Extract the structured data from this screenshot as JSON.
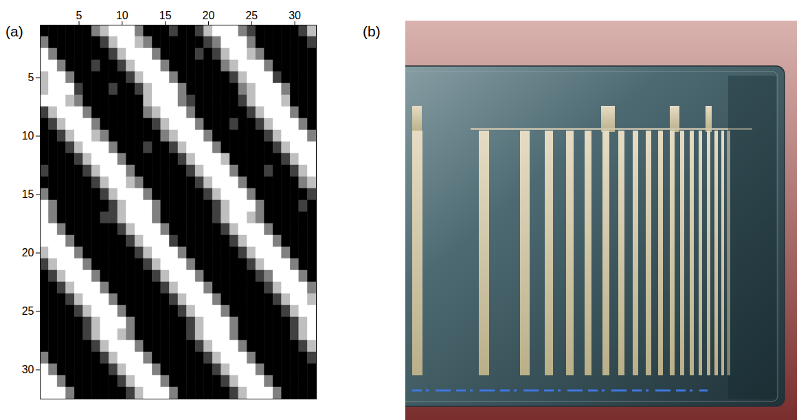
{
  "chart_data": {
    "type": "heatmap",
    "panel_label": "(a)",
    "x": [
      1,
      2,
      3,
      4,
      5,
      6,
      7,
      8,
      9,
      10,
      11,
      12,
      13,
      14,
      15,
      16,
      17,
      18,
      19,
      20,
      21,
      22,
      23,
      24,
      25,
      26,
      27,
      28,
      29,
      30,
      31,
      32
    ],
    "y": [
      1,
      2,
      3,
      4,
      5,
      6,
      7,
      8,
      9,
      10,
      11,
      12,
      13,
      14,
      15,
      16,
      17,
      18,
      19,
      20,
      21,
      22,
      23,
      24,
      25,
      26,
      27,
      28,
      29,
      30,
      31,
      32
    ],
    "xlim": [
      0.5,
      32.5
    ],
    "ylim": [
      0.5,
      32.5
    ],
    "xticks": [
      5,
      10,
      15,
      20,
      25,
      30
    ],
    "yticks": [
      5,
      10,
      15,
      20,
      25,
      30
    ],
    "color_range": [
      0,
      4
    ],
    "values": [
      [
        4,
        4,
        4,
        4,
        4,
        4,
        2,
        1,
        0,
        0,
        0,
        2,
        4,
        4,
        4,
        3,
        4,
        4,
        3,
        1,
        0,
        0,
        0,
        2,
        3,
        4,
        4,
        4,
        4,
        4,
        3,
        1
      ],
      [
        2,
        4,
        4,
        4,
        4,
        4,
        4,
        3,
        1,
        0,
        0,
        1,
        2,
        4,
        4,
        4,
        4,
        4,
        4,
        3,
        2,
        0,
        0,
        0,
        2,
        4,
        4,
        4,
        4,
        4,
        4,
        3
      ],
      [
        0,
        2,
        4,
        4,
        4,
        4,
        4,
        4,
        3,
        1,
        0,
        0,
        0,
        2,
        4,
        4,
        4,
        4,
        3,
        4,
        3,
        1,
        0,
        0,
        1,
        2,
        4,
        4,
        4,
        4,
        4,
        4
      ],
      [
        0,
        0,
        2,
        4,
        4,
        4,
        3,
        4,
        4,
        3,
        1,
        0,
        0,
        0,
        2,
        4,
        4,
        4,
        4,
        4,
        4,
        2,
        1,
        0,
        0,
        0,
        2,
        4,
        4,
        4,
        4,
        4
      ],
      [
        1,
        0,
        0,
        2,
        4,
        4,
        4,
        4,
        4,
        4,
        3,
        1,
        0,
        0,
        0,
        2,
        4,
        4,
        4,
        4,
        4,
        4,
        3,
        1,
        0,
        0,
        0,
        3,
        4,
        4,
        4,
        4
      ],
      [
        1,
        0,
        0,
        0,
        3,
        4,
        4,
        4,
        3,
        4,
        4,
        3,
        1,
        0,
        0,
        0,
        2,
        4,
        4,
        4,
        4,
        4,
        4,
        2,
        1,
        0,
        0,
        0,
        2,
        4,
        4,
        4
      ],
      [
        0,
        0,
        0,
        1,
        2,
        4,
        4,
        4,
        4,
        4,
        4,
        4,
        1,
        0,
        0,
        0,
        2,
        3,
        4,
        4,
        4,
        4,
        4,
        3,
        1,
        0,
        0,
        0,
        1,
        4,
        4,
        4
      ],
      [
        3,
        1,
        0,
        0,
        0,
        2,
        4,
        4,
        4,
        4,
        4,
        4,
        2,
        1,
        0,
        0,
        0,
        2,
        4,
        4,
        4,
        4,
        4,
        4,
        3,
        1,
        0,
        0,
        0,
        2,
        4,
        4
      ],
      [
        4,
        3,
        1,
        0,
        0,
        0,
        2,
        4,
        4,
        4,
        4,
        4,
        4,
        3,
        1,
        0,
        0,
        0,
        2,
        4,
        4,
        4,
        3,
        4,
        4,
        3,
        1,
        0,
        0,
        0,
        2,
        4
      ],
      [
        4,
        4,
        3,
        1,
        0,
        0,
        1,
        2,
        4,
        4,
        4,
        4,
        4,
        4,
        2,
        1,
        0,
        0,
        0,
        2,
        4,
        4,
        4,
        4,
        4,
        4,
        3,
        1,
        0,
        0,
        0,
        2
      ],
      [
        4,
        4,
        4,
        3,
        1,
        0,
        0,
        0,
        2,
        4,
        4,
        4,
        3,
        4,
        4,
        3,
        1,
        0,
        0,
        0,
        2,
        4,
        4,
        4,
        4,
        4,
        4,
        3,
        1,
        0,
        0,
        0
      ],
      [
        4,
        4,
        4,
        4,
        3,
        1,
        0,
        0,
        0,
        2,
        4,
        4,
        4,
        4,
        4,
        4,
        3,
        1,
        0,
        0,
        0,
        1,
        4,
        4,
        4,
        4,
        4,
        4,
        3,
        1,
        0,
        0
      ],
      [
        3,
        4,
        4,
        4,
        4,
        3,
        1,
        0,
        0,
        0,
        2,
        4,
        4,
        4,
        4,
        4,
        4,
        3,
        1,
        0,
        0,
        0,
        2,
        4,
        4,
        4,
        3,
        4,
        4,
        3,
        1,
        0
      ],
      [
        4,
        4,
        4,
        4,
        4,
        4,
        3,
        1,
        0,
        0,
        1,
        2,
        4,
        4,
        4,
        4,
        4,
        4,
        3,
        1,
        0,
        0,
        0,
        2,
        4,
        4,
        4,
        4,
        4,
        4,
        2,
        1
      ],
      [
        2,
        4,
        4,
        4,
        4,
        4,
        4,
        3,
        1,
        0,
        0,
        0,
        2,
        4,
        4,
        4,
        4,
        4,
        4,
        3,
        1,
        0,
        0,
        0,
        2,
        4,
        4,
        4,
        4,
        4,
        4,
        3
      ],
      [
        0,
        2,
        4,
        4,
        4,
        4,
        4,
        4,
        3,
        1,
        0,
        0,
        0,
        2,
        4,
        4,
        4,
        4,
        4,
        4,
        3,
        1,
        0,
        0,
        0,
        2,
        4,
        4,
        4,
        4,
        3,
        4
      ],
      [
        0,
        2,
        4,
        4,
        4,
        4,
        4,
        3,
        3,
        1,
        0,
        0,
        0,
        2,
        4,
        4,
        4,
        4,
        4,
        4,
        3,
        1,
        0,
        0,
        1,
        2,
        4,
        4,
        4,
        4,
        4,
        4
      ],
      [
        0,
        0,
        2,
        4,
        4,
        4,
        4,
        4,
        4,
        3,
        1,
        0,
        0,
        0,
        2,
        4,
        4,
        4,
        4,
        4,
        4,
        3,
        1,
        0,
        0,
        0,
        2,
        4,
        4,
        4,
        4,
        4
      ],
      [
        0,
        0,
        0,
        2,
        4,
        4,
        4,
        4,
        4,
        4,
        3,
        1,
        0,
        0,
        0,
        3,
        4,
        4,
        4,
        4,
        4,
        4,
        3,
        1,
        0,
        0,
        0,
        2,
        4,
        4,
        4,
        4
      ],
      [
        1,
        0,
        0,
        0,
        2,
        4,
        4,
        4,
        4,
        4,
        4,
        3,
        1,
        0,
        0,
        0,
        2,
        4,
        4,
        4,
        4,
        4,
        4,
        3,
        1,
        0,
        0,
        0,
        2,
        4,
        4,
        4
      ],
      [
        3,
        1,
        0,
        0,
        0,
        2,
        4,
        4,
        4,
        4,
        4,
        4,
        3,
        1,
        0,
        0,
        0,
        2,
        4,
        4,
        4,
        4,
        4,
        4,
        3,
        1,
        0,
        0,
        0,
        2,
        4,
        4
      ],
      [
        4,
        3,
        1,
        0,
        0,
        0,
        2,
        4,
        4,
        4,
        4,
        4,
        4,
        3,
        1,
        0,
        0,
        0,
        2,
        4,
        4,
        4,
        4,
        4,
        4,
        3,
        2,
        0,
        0,
        0,
        2,
        4
      ],
      [
        4,
        4,
        3,
        1,
        0,
        0,
        0,
        2,
        4,
        4,
        4,
        4,
        4,
        4,
        3,
        1,
        0,
        0,
        0,
        2,
        4,
        4,
        4,
        4,
        4,
        4,
        3,
        1,
        0,
        0,
        0,
        2
      ],
      [
        4,
        4,
        4,
        3,
        1,
        0,
        0,
        0,
        2,
        4,
        4,
        4,
        4,
        4,
        4,
        3,
        1,
        0,
        0,
        0,
        2,
        4,
        4,
        4,
        4,
        4,
        4,
        3,
        1,
        0,
        0,
        1
      ],
      [
        4,
        4,
        4,
        4,
        3,
        1,
        0,
        0,
        0,
        2,
        4,
        4,
        4,
        4,
        4,
        4,
        3,
        1,
        0,
        0,
        0,
        2,
        4,
        4,
        4,
        4,
        4,
        4,
        3,
        1,
        0,
        0
      ],
      [
        4,
        4,
        4,
        4,
        4,
        3,
        1,
        0,
        0,
        0,
        2,
        4,
        4,
        4,
        4,
        4,
        4,
        3,
        1,
        0,
        0,
        0,
        2,
        4,
        4,
        4,
        4,
        4,
        4,
        3,
        1,
        0
      ],
      [
        4,
        4,
        4,
        4,
        4,
        3,
        1,
        0,
        0,
        1,
        2,
        4,
        4,
        4,
        4,
        4,
        4,
        3,
        1,
        0,
        0,
        0,
        2,
        4,
        4,
        4,
        4,
        4,
        4,
        3,
        1,
        0
      ],
      [
        4,
        4,
        4,
        4,
        4,
        4,
        3,
        1,
        0,
        0,
        0,
        2,
        4,
        4,
        4,
        4,
        4,
        4,
        3,
        1,
        0,
        0,
        0,
        2,
        4,
        4,
        4,
        4,
        4,
        4,
        3,
        1
      ],
      [
        2,
        4,
        4,
        4,
        4,
        4,
        4,
        3,
        1,
        0,
        0,
        0,
        2,
        4,
        4,
        4,
        4,
        4,
        4,
        3,
        1,
        0,
        0,
        0,
        2,
        4,
        4,
        4,
        4,
        4,
        4,
        3
      ],
      [
        0,
        2,
        4,
        4,
        4,
        4,
        4,
        4,
        3,
        1,
        0,
        0,
        0,
        2,
        4,
        4,
        4,
        4,
        4,
        4,
        3,
        1,
        0,
        0,
        0,
        2,
        4,
        4,
        4,
        4,
        4,
        4
      ],
      [
        0,
        0,
        2,
        4,
        4,
        4,
        4,
        4,
        4,
        3,
        1,
        0,
        0,
        0,
        2,
        4,
        4,
        4,
        4,
        4,
        4,
        3,
        1,
        0,
        0,
        0,
        2,
        4,
        4,
        4,
        4,
        4
      ],
      [
        0,
        0,
        0,
        2,
        4,
        4,
        4,
        4,
        4,
        4,
        3,
        1,
        0,
        0,
        0,
        2,
        4,
        4,
        4,
        4,
        4,
        4,
        3,
        1,
        0,
        0,
        0,
        2,
        4,
        4,
        4,
        4
      ]
    ]
  },
  "photo": {
    "panel_label": "(b)"
  }
}
